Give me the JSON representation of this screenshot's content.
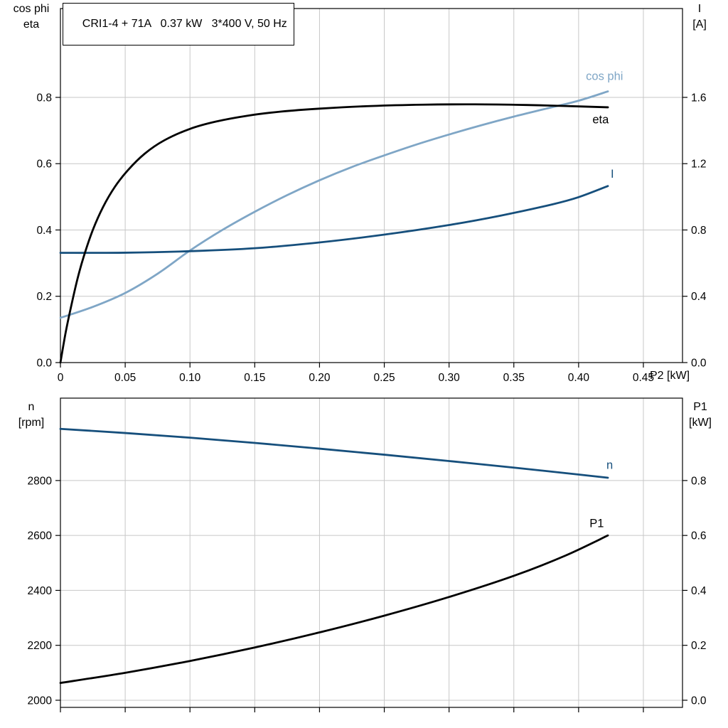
{
  "colors": {
    "grid": "#C7C7C7",
    "axis": "#000000",
    "curve_light_blue": "#7FA6C6",
    "curve_dark_blue": "#164F7C",
    "curve_black": "#000000"
  },
  "chart_data": [
    {
      "type": "line",
      "title": "CRI1-4 + 71A   0.37 kW   3*400 V, 50 Hz",
      "legend_position": "at-curve-ends",
      "grid": true,
      "x_axis": {
        "title": "P2 [kW]",
        "min": 0,
        "max": 0.4802,
        "ticks": [
          0,
          0.05,
          0.1,
          0.15,
          0.2,
          0.25,
          0.3,
          0.35,
          0.4,
          0.45
        ],
        "tick_labels": [
          "0",
          "0.05",
          "0.10",
          "0.15",
          "0.20",
          "0.25",
          "0.30",
          "0.35",
          "0.40",
          "0.45"
        ]
      },
      "left_axis": {
        "title_lines": [
          "cos phi",
          "eta"
        ],
        "min": 0,
        "max": 1.068,
        "ticks": [
          0,
          0.2,
          0.4,
          0.6,
          0.8
        ],
        "tick_labels": [
          "0.0",
          "0.2",
          "0.4",
          "0.6",
          "0.8"
        ]
      },
      "right_axis": {
        "title_lines": [
          "I",
          "[A]"
        ],
        "min": 0,
        "max": 2.136,
        "ticks": [
          0,
          0.4,
          0.8,
          1.2,
          1.6
        ],
        "tick_labels": [
          "0.0",
          "0.4",
          "0.8",
          "1.2",
          "1.6"
        ]
      },
      "series": [
        {
          "name": "cos phi",
          "axis": "left",
          "color": "#7FA6C6",
          "label_at": [
            0.42,
            0.852
          ],
          "points": [
            [
              0,
              0.135
            ],
            [
              0.025,
              0.168
            ],
            [
              0.05,
              0.21
            ],
            [
              0.075,
              0.268
            ],
            [
              0.1,
              0.338
            ],
            [
              0.125,
              0.4
            ],
            [
              0.15,
              0.455
            ],
            [
              0.175,
              0.505
            ],
            [
              0.2,
              0.55
            ],
            [
              0.225,
              0.59
            ],
            [
              0.25,
              0.625
            ],
            [
              0.275,
              0.658
            ],
            [
              0.3,
              0.688
            ],
            [
              0.325,
              0.716
            ],
            [
              0.35,
              0.742
            ],
            [
              0.375,
              0.766
            ],
            [
              0.4,
              0.79
            ],
            [
              0.4226,
              0.818
            ]
          ]
        },
        {
          "name": "I",
          "axis": "right",
          "color": "#164F7C",
          "label_at": [
            0.426,
            1.115
          ],
          "points": [
            [
              0,
              0.662
            ],
            [
              0.05,
              0.663
            ],
            [
              0.1,
              0.672
            ],
            [
              0.15,
              0.69
            ],
            [
              0.2,
              0.725
            ],
            [
              0.25,
              0.772
            ],
            [
              0.3,
              0.83
            ],
            [
              0.34,
              0.887
            ],
            [
              0.38,
              0.955
            ],
            [
              0.4,
              0.998
            ],
            [
              0.4226,
              1.065
            ]
          ]
        },
        {
          "name": "eta",
          "axis": "left",
          "color": "#000000",
          "label_at": [
            0.417,
            0.722
          ],
          "points": [
            [
              0,
              0
            ],
            [
              0.004,
              0.09
            ],
            [
              0.008,
              0.165
            ],
            [
              0.013,
              0.25
            ],
            [
              0.018,
              0.32
            ],
            [
              0.025,
              0.4
            ],
            [
              0.033,
              0.47
            ],
            [
              0.042,
              0.53
            ],
            [
              0.052,
              0.58
            ],
            [
              0.065,
              0.63
            ],
            [
              0.08,
              0.67
            ],
            [
              0.1,
              0.705
            ],
            [
              0.12,
              0.727
            ],
            [
              0.145,
              0.745
            ],
            [
              0.17,
              0.757
            ],
            [
              0.2,
              0.766
            ],
            [
              0.24,
              0.774
            ],
            [
              0.28,
              0.778
            ],
            [
              0.32,
              0.779
            ],
            [
              0.36,
              0.777
            ],
            [
              0.39,
              0.774
            ],
            [
              0.4226,
              0.77
            ]
          ]
        }
      ]
    },
    {
      "type": "line",
      "title": "",
      "legend_position": "at-curve-ends",
      "grid": true,
      "x_axis": {
        "title": "",
        "min": 0,
        "max": 0.4802,
        "ticks": [
          0,
          0.05,
          0.1,
          0.15,
          0.2,
          0.25,
          0.3,
          0.35,
          0.4,
          0.45
        ],
        "tick_labels": []
      },
      "left_axis": {
        "title_lines": [
          "n",
          "[rpm]"
        ],
        "min": 1974,
        "max": 3100,
        "ticks": [
          2000,
          2200,
          2400,
          2600,
          2800
        ],
        "tick_labels": [
          "2000",
          "2200",
          "2400",
          "2600",
          "2800"
        ]
      },
      "right_axis": {
        "title_lines": [
          "P1",
          "[kW]"
        ],
        "min": -0.026,
        "max": 1.1,
        "ticks": [
          0,
          0.2,
          0.4,
          0.6,
          0.8
        ],
        "tick_labels": [
          "0.0",
          "0.2",
          "0.4",
          "0.6",
          "0.8"
        ]
      },
      "series": [
        {
          "name": "n",
          "axis": "left",
          "color": "#164F7C",
          "label_at": [
            0.424,
            2843
          ],
          "points": [
            [
              0,
              2988
            ],
            [
              0.05,
              2973
            ],
            [
              0.1,
              2956
            ],
            [
              0.15,
              2937
            ],
            [
              0.2,
              2916
            ],
            [
              0.25,
              2894
            ],
            [
              0.3,
              2871
            ],
            [
              0.35,
              2847
            ],
            [
              0.39,
              2827
            ],
            [
              0.4226,
              2810
            ]
          ]
        },
        {
          "name": "P1",
          "axis": "right",
          "color": "#000000",
          "label_at": [
            0.414,
            0.63
          ],
          "points": [
            [
              0,
              0.063
            ],
            [
              0.05,
              0.1
            ],
            [
              0.1,
              0.143
            ],
            [
              0.15,
              0.192
            ],
            [
              0.2,
              0.247
            ],
            [
              0.25,
              0.308
            ],
            [
              0.3,
              0.376
            ],
            [
              0.35,
              0.453
            ],
            [
              0.39,
              0.527
            ],
            [
              0.4226,
              0.6
            ]
          ]
        }
      ]
    }
  ]
}
